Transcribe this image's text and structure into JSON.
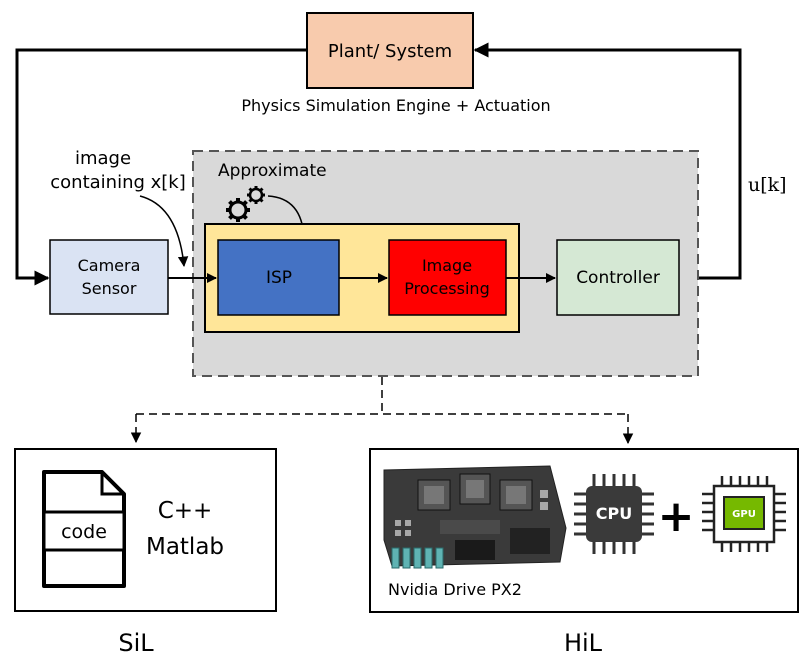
{
  "plant": {
    "label": "Plant/ System",
    "caption": "Physics Simulation Engine + Actuation"
  },
  "camera": {
    "line1": "Camera",
    "line2": "Sensor"
  },
  "input_annotation": {
    "line1": "image",
    "line2": "containing x[k]"
  },
  "approximate": {
    "label": "Approximate"
  },
  "isp": {
    "label": "ISP"
  },
  "image_processing": {
    "line1": "Image",
    "line2": "Processing"
  },
  "controller": {
    "label": "Controller"
  },
  "control_signal": {
    "label": "u[k]"
  },
  "sil": {
    "code_label": "code",
    "lang1": "C++",
    "lang2": "Matlab",
    "caption": "SiL"
  },
  "hil": {
    "board_caption": "Nvidia Drive PX2",
    "cpu_label": "CPU",
    "gpu_label": "GPU",
    "plus": "+",
    "caption": "HiL"
  },
  "colors": {
    "plant_fill": "#f8cbad",
    "camera_fill": "#dae3f3",
    "approx_fill": "#d9d9d9",
    "pipeline_fill": "#ffe699",
    "isp_fill": "#4472c4",
    "image_processing_fill": "#ff0000",
    "controller_fill": "#d5e8d4",
    "gpu_green": "#76b900"
  }
}
